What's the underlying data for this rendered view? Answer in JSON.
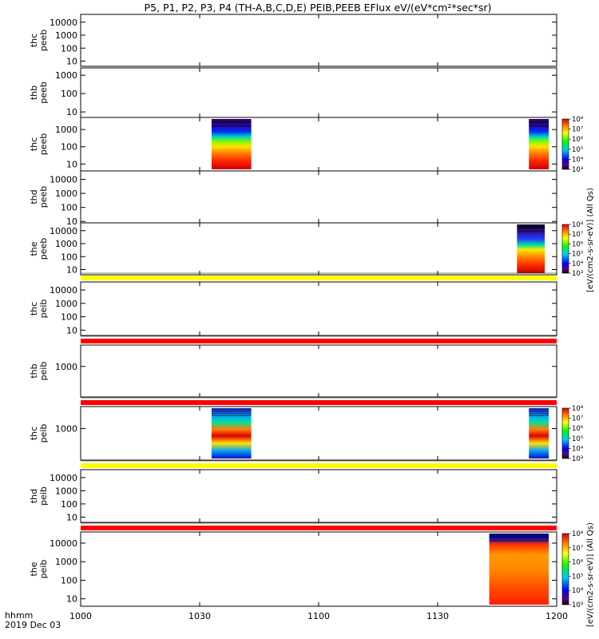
{
  "title": "P5, P1, P2, P3, P4 (TH-A,B,C,D,E) PEIB,PEEB EFlux eV/(eV*cm²*sec*sr)",
  "time_axis": {
    "ticks": [
      "1000",
      "1030",
      "1100",
      "1130",
      "1200"
    ],
    "label_line1": "hhmm",
    "label_line2": "2019 Dec 03"
  },
  "colorbar_label": "[eV/(cm2-s-sr-eV)] (All Qs)",
  "colors": {
    "qual_yellow": "#ffff00",
    "qual_red": "#ff0000",
    "frame": "#000000"
  },
  "chart_data": {
    "type": "heatmap",
    "x_range": [
      "10:00",
      "12:00"
    ],
    "colorbar_log_range": [
      3,
      8
    ],
    "panels": [
      {
        "id": "thc-peeb-top",
        "label": [
          "thc",
          "peeb"
        ],
        "yticks": [
          "10000",
          "1000",
          "100",
          "10"
        ],
        "log_range": [
          0.6,
          4.6
        ],
        "blocks": []
      },
      {
        "id": "thb-peeb",
        "label": [
          "thb",
          "peeb"
        ],
        "yticks": [
          "1000",
          "100",
          "10"
        ],
        "log_range": [
          0.7,
          3.4
        ],
        "blocks": []
      },
      {
        "id": "thc-peeb",
        "label": [
          "thc",
          "peeb"
        ],
        "yticks": [
          "1000",
          "100",
          "10"
        ],
        "log_range": [
          0.6,
          3.7
        ],
        "colorbar": true,
        "blocks": [
          {
            "t0": "10:33",
            "t1": "10:43",
            "style": "electron-bright"
          },
          {
            "t0": "11:53",
            "t1": "11:58",
            "style": "electron-bright"
          }
        ]
      },
      {
        "id": "thd-peeb",
        "label": [
          "thd",
          "peeb"
        ],
        "yticks": [
          "10000",
          "1000",
          "100",
          "10"
        ],
        "log_range": [
          0.9,
          4.6
        ],
        "blocks": []
      },
      {
        "id": "the-peeb",
        "label": [
          "the",
          "peeb"
        ],
        "yticks": [
          "10000",
          "1000",
          "100",
          "10"
        ],
        "log_range": [
          0.6,
          4.6
        ],
        "colorbar": true,
        "blocks": [
          {
            "t0": "11:50",
            "t1": "11:57",
            "style": "electron-the"
          }
        ]
      },
      {
        "id": "thc-peib",
        "label": [
          "thc",
          "peib"
        ],
        "yticks": [
          "10000",
          "1000",
          "100",
          "10"
        ],
        "log_range": [
          0.6,
          4.6
        ],
        "qual_bar": "yellow",
        "blocks": []
      },
      {
        "id": "thb-peib",
        "label": [
          "thb",
          "peib"
        ],
        "yticks": [
          "1000"
        ],
        "log_range": [
          2.0,
          3.7
        ],
        "qual_bar": "red",
        "blocks": []
      },
      {
        "id": "thc-peib2",
        "label": [
          "thc",
          "peib"
        ],
        "yticks": [
          "1000"
        ],
        "log_range": [
          2.0,
          3.7
        ],
        "qual_bar": "red",
        "colorbar": true,
        "blocks": [
          {
            "t0": "10:33",
            "t1": "10:43",
            "style": "ion"
          },
          {
            "t0": "11:53",
            "t1": "11:58",
            "style": "ion"
          }
        ]
      },
      {
        "id": "thd-peib",
        "label": [
          "thd",
          "peib"
        ],
        "yticks": [
          "10000",
          "1000",
          "100",
          "10"
        ],
        "log_range": [
          0.6,
          4.6
        ],
        "qual_bar": "yellow",
        "blocks": []
      },
      {
        "id": "the-peib",
        "label": [
          "the",
          "peib"
        ],
        "yticks": [
          "10000",
          "1000",
          "100",
          "10"
        ],
        "log_range": [
          0.6,
          4.6
        ],
        "qual_bar": "red",
        "colorbar": true,
        "blocks": [
          {
            "t0": "11:43",
            "t1": "11:58",
            "style": "ion-warm"
          }
        ]
      }
    ]
  }
}
